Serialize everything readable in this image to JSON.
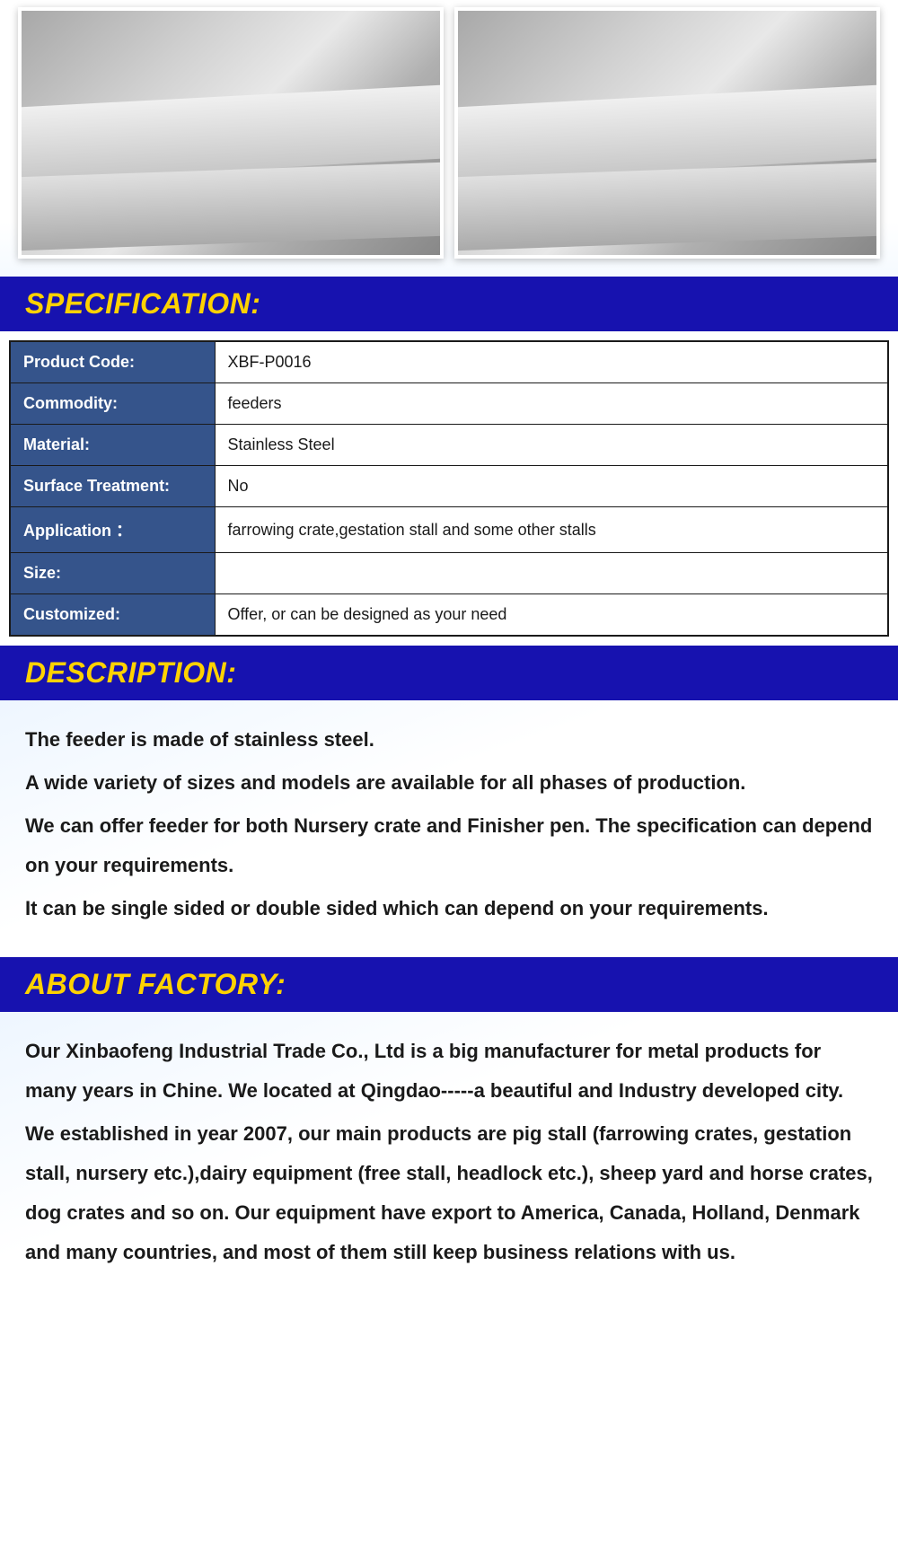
{
  "sections": {
    "specification_title": "SPECIFICATION:",
    "description_title": "DESCRIPTION:",
    "about_factory_title": "ABOUT FACTORY:"
  },
  "spec_table": {
    "header_bg": "#35548b",
    "header_fg": "#ffffff",
    "value_bg": "#ffffff",
    "border_color": "#1a1a1a",
    "rows": [
      {
        "label": "Product Code:",
        "value": "XBF-P0016"
      },
      {
        "label": "Commodity:",
        "value": "feeders"
      },
      {
        "label": "Material:",
        "value": "Stainless Steel"
      },
      {
        "label": "Surface Treatment:",
        "value": "No"
      },
      {
        "label": "Application ：",
        "value": "farrowing crate,gestation stall and some other stalls"
      },
      {
        "label": "Size:",
        "value": ""
      },
      {
        "label": "Customized:",
        "value": "Offer, or can be designed as your need"
      }
    ]
  },
  "description": {
    "p1": "The feeder is made of stainless steel.",
    "p2": "A wide variety of sizes and models are available for all phases of production.",
    "p3": "We can offer feeder for both Nursery crate and Finisher pen. The specification can depend on your requirements.",
    "p4": "It can be single sided or double sided which can depend on your requirements."
  },
  "about_factory": {
    "p1": "Our Xinbaofeng Industrial Trade Co., Ltd is a big manufacturer for metal products for many years in Chine. We located at Qingdao-----a beautiful and Industry developed city.",
    "p2": "We established in year 2007, our main products are pig stall (farrowing crates, gestation stall, nursery etc.),dairy equipment (free stall, headlock etc.), sheep yard and horse crates, dog crates and so on. Our equipment have export to America, Canada, Holland, Denmark and many countries, and most of them still keep business relations with us."
  },
  "colors": {
    "header_bg": "#1712af",
    "header_fg": "#ffd200",
    "body_fg": "#1a1a1a"
  }
}
